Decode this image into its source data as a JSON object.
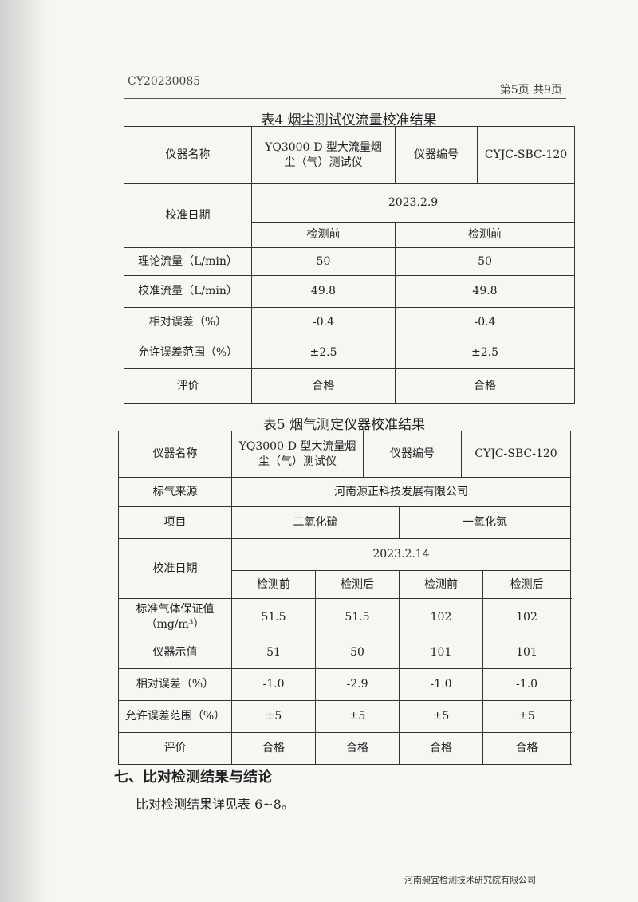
{
  "header": {
    "code": "CY20230085",
    "page": "第5页 共9页"
  },
  "table4": {
    "caption": "表4 烟尘测试仪流量校准结果",
    "instrument_name_label": "仪器名称",
    "instrument_name": "YQ3000-D 型大流量烟尘（气）测试仪",
    "instrument_no_label": "仪器编号",
    "instrument_no": "CYJC-SBC-120",
    "date_label": "校准日期",
    "date": "2023.2.9",
    "phases": [
      "检测前",
      "检测前"
    ],
    "rows": [
      {
        "label": "理论流量（L/min）",
        "values": [
          "50",
          "50"
        ]
      },
      {
        "label": "校准流量（L/min）",
        "values": [
          "49.8",
          "49.8"
        ]
      },
      {
        "label": "相对误差（%）",
        "values": [
          "-0.4",
          "-0.4"
        ]
      },
      {
        "label": "允许误差范围（%）",
        "values": [
          "±2.5",
          "±2.5"
        ]
      },
      {
        "label": "评价",
        "values": [
          "合格",
          "合格"
        ]
      }
    ]
  },
  "table5": {
    "caption": "表5 烟气测定仪器校准结果",
    "instrument_name_label": "仪器名称",
    "instrument_name": "YQ3000-D 型大流量烟尘（气）测试仪",
    "instrument_no_label": "仪器编号",
    "instrument_no": "CYJC-SBC-120",
    "gas_source_label": "标气来源",
    "gas_source": "河南源正科技发展有限公司",
    "item_label": "项目",
    "items": [
      "二氧化硫",
      "一氧化氮"
    ],
    "date_label": "校准日期",
    "date": "2023.2.14",
    "phases": [
      "检测前",
      "检测后",
      "检测前",
      "检测后"
    ],
    "rows": [
      {
        "label": "标准气体保证值（mg/m³）",
        "values": [
          "51.5",
          "51.5",
          "102",
          "102"
        ]
      },
      {
        "label": "仪器示值",
        "values": [
          "51",
          "50",
          "101",
          "101"
        ]
      },
      {
        "label": "相对误差（%）",
        "values": [
          "-1.0",
          "-2.9",
          "-1.0",
          "-1.0"
        ]
      },
      {
        "label": "允许误差范围（%）",
        "values": [
          "±5",
          "±5",
          "±5",
          "±5"
        ]
      },
      {
        "label": "评价",
        "values": [
          "合格",
          "合格",
          "合格",
          "合格"
        ]
      }
    ]
  },
  "section": {
    "heading": "七、比对检测结果与结论",
    "text": "比对检测结果详见表 6~8。"
  },
  "footer": "河南昶宜检测技术研究院有限公司"
}
